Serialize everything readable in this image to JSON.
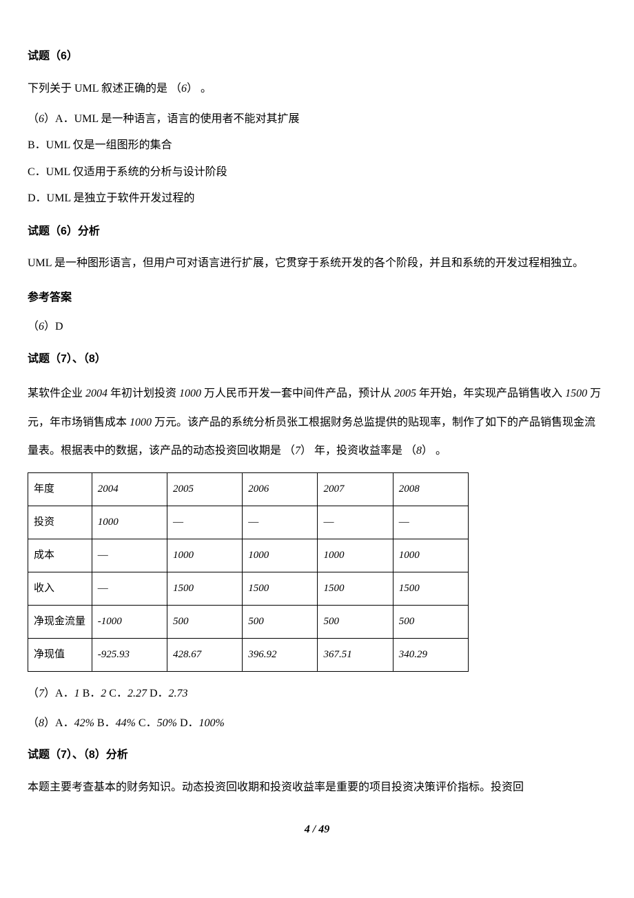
{
  "q6": {
    "title": "试题（6）",
    "stem_prefix": "下列关于 UML 叙述正确的是 （",
    "stem_num": "6",
    "stem_suffix": "） 。",
    "optA_prefix": "（",
    "optA_num": "6",
    "optA_text": "）A．UML 是一种语言，语言的使用者不能对其扩展",
    "optB": "B．UML 仅是一组图形的集合",
    "optC": "C．UML 仅适用于系统的分析与设计阶段",
    "optD": "D．UML 是独立于软件开发过程的",
    "analysis_title": "试题（6）分析",
    "analysis_text": "UML 是一种图形语言，但用户可对语言进行扩展，它贯穿于系统开发的各个阶段，并且和系统的开发过程相独立。",
    "answer_title": "参考答案",
    "answer_prefix": "（",
    "answer_num": "6",
    "answer_text": "）D"
  },
  "q78": {
    "title": "试题（7）、（8）",
    "stem_p1": "某软件企业 ",
    "year1": "2004",
    "stem_p2": " 年初计划投资 ",
    "val1": "1000",
    "stem_p3": " 万人民币开发一套中间件产品，预计从 ",
    "year2": "2005",
    "stem_p4": " 年开始，年实现产品销售收入 ",
    "val2": "1500",
    "stem_p5": " 万元，年市场销售成本 ",
    "val3": "1000",
    "stem_p6": " 万元。该产品的系统分析员张工根据财务总监提供的贴现率，制作了如下的产品销售现金流量表。根据表中的数据，该产品的动态投资回收期是 （",
    "blank7": "7",
    "stem_p7": "） 年，投资收益率是 （",
    "blank8": "8",
    "stem_p8": "） 。",
    "table": {
      "headers": [
        "年度",
        "2004",
        "2005",
        "2006",
        "2007",
        "2008"
      ],
      "rows": [
        [
          "投资",
          "1000",
          "—",
          "—",
          "—",
          "—"
        ],
        [
          "成本",
          "—",
          "1000",
          "1000",
          "1000",
          "1000"
        ],
        [
          "收入",
          "—",
          "1500",
          "1500",
          "1500",
          "1500"
        ],
        [
          "净现金流量",
          "-1000",
          "500",
          "500",
          "500",
          "500"
        ],
        [
          "净现值",
          "-925.93",
          "428.67",
          "396.92",
          "367.51",
          "340.29"
        ]
      ]
    },
    "opt7_prefix": "（",
    "opt7_num": "7",
    "opt7_mid": "）A．",
    "opt7_a": "1",
    "opt7_b_label": "  B．",
    "opt7_b": "2",
    "opt7_c_label": "   C．",
    "opt7_c": "2.27",
    "opt7_d_label": "   D．",
    "opt7_d": "2.73",
    "opt8_prefix": "（",
    "opt8_num": "8",
    "opt8_mid": "）A．",
    "opt8_a": "42%",
    "opt8_b_label": "  B．",
    "opt8_b": "44%",
    "opt8_c_label": "   C．",
    "opt8_c": "50%",
    "opt8_d_label": "   D．",
    "opt8_d": "100%",
    "analysis_title": "试题（7）、（8）分析",
    "analysis_text": "本题主要考查基本的财务知识。动态投资回收期和投资收益率是重要的项目投资决策评价指标。投资回"
  },
  "page": {
    "current": "4",
    "sep": " / ",
    "total": "49"
  }
}
